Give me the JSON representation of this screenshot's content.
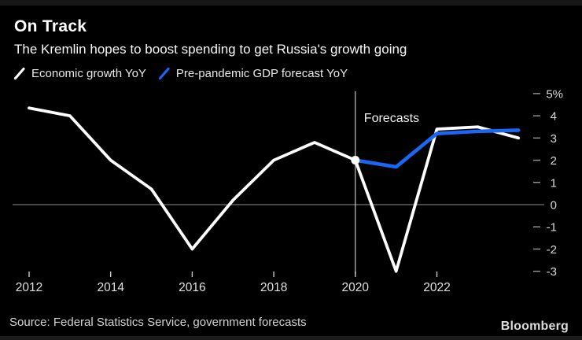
{
  "header": {
    "title": "On Track",
    "subtitle": "The Kremlin hopes to boost spending to get Russia's growth going"
  },
  "legend": {
    "items": [
      {
        "label": "Economic growth YoY",
        "color": "#ffffff"
      },
      {
        "label": "Pre-pandemic GDP forecast YoY",
        "color": "#1a66f5"
      }
    ]
  },
  "chart_data": {
    "type": "line",
    "title": "On Track",
    "subtitle": "The Kremlin hopes to boost spending to get Russia's growth going",
    "xlabel": "",
    "ylabel": "",
    "xlim": [
      2012,
      2024
    ],
    "ylim": [
      -3.5,
      5
    ],
    "grid": "zero-line-only",
    "legend_position": "top-left",
    "x_ticks": [
      2012,
      2014,
      2016,
      2018,
      2020,
      2022
    ],
    "y_ticks": [
      5,
      4,
      3,
      2,
      1,
      0,
      -1,
      -2,
      -3
    ],
    "y_max_label_suffix": "%",
    "series": [
      {
        "name": "Economic growth YoY",
        "color": "#ffffff",
        "x": [
          2012,
          2013,
          2014,
          2015,
          2016,
          2017,
          2018,
          2019,
          2020,
          2021,
          2022,
          2023,
          2024
        ],
        "values": [
          4.35,
          4.0,
          2.0,
          0.7,
          -2.0,
          0.2,
          2.0,
          2.8,
          2.0,
          -3.0,
          3.4,
          3.5,
          3.0
        ]
      },
      {
        "name": "Pre-pandemic GDP forecast YoY",
        "color": "#1a66f5",
        "x": [
          2020,
          2021,
          2022,
          2023,
          2024
        ],
        "values": [
          2.0,
          1.7,
          3.2,
          3.3,
          3.35
        ]
      }
    ],
    "annotations": {
      "forecast_label": "Forecasts",
      "forecast_divider_x": 2020,
      "forecast_start_dot": {
        "x": 2020,
        "value": 2.0
      }
    }
  },
  "footer": {
    "source": "Source: Federal Statistics Service, government forecasts",
    "brand": "Bloomberg"
  }
}
